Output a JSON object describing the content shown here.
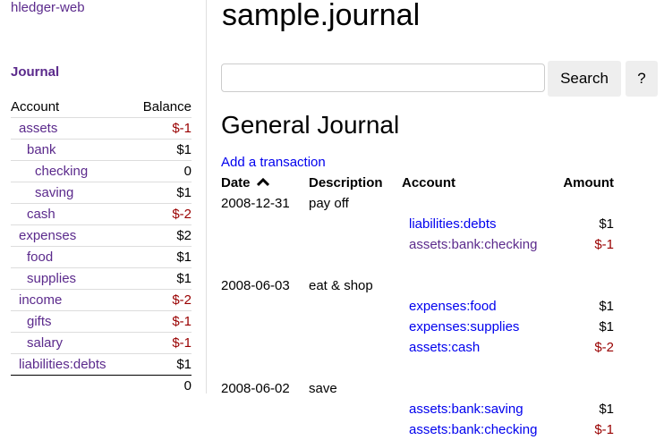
{
  "sidebar": {
    "brand": "hledger-web",
    "journal_link": "Journal",
    "headers": {
      "account": "Account",
      "balance": "Balance"
    },
    "accounts": [
      {
        "name": "assets",
        "balance": "$-1",
        "depth": 1,
        "negative": true
      },
      {
        "name": "bank",
        "balance": "$1",
        "depth": 2,
        "negative": false
      },
      {
        "name": "checking",
        "balance": "0",
        "depth": 3,
        "negative": false
      },
      {
        "name": "saving",
        "balance": "$1",
        "depth": 3,
        "negative": false
      },
      {
        "name": "cash",
        "balance": "$-2",
        "depth": 2,
        "negative": true
      },
      {
        "name": "expenses",
        "balance": "$2",
        "depth": 1,
        "negative": false
      },
      {
        "name": "food",
        "balance": "$1",
        "depth": 2,
        "negative": false
      },
      {
        "name": "supplies",
        "balance": "$1",
        "depth": 2,
        "negative": false
      },
      {
        "name": "income",
        "balance": "$-2",
        "depth": 1,
        "negative": true
      },
      {
        "name": "gifts",
        "balance": "$-1",
        "depth": 2,
        "negative": true
      },
      {
        "name": "salary",
        "balance": "$-1",
        "depth": 2,
        "negative": true
      },
      {
        "name": "liabilities:debts",
        "balance": "$1",
        "depth": 1,
        "negative": false
      }
    ],
    "total": "0"
  },
  "main": {
    "title": "sample.journal",
    "search": {
      "value": "",
      "button": "Search",
      "help": "?"
    },
    "heading": "General Journal",
    "add_link": "Add a transaction",
    "columns": {
      "date": "Date",
      "description": "Description",
      "account": "Account",
      "amount": "Amount"
    },
    "sort_icon": "chevron-up-icon",
    "transactions": [
      {
        "date": "2008-12-31",
        "description": "pay off",
        "postings": [
          {
            "account": "liabilities:debts",
            "amount": "$1",
            "visited": false,
            "negative": false
          },
          {
            "account": "assets:bank:checking",
            "amount": "$-1",
            "visited": true,
            "negative": true
          }
        ]
      },
      {
        "date": "2008-06-03",
        "description": "eat & shop",
        "postings": [
          {
            "account": "expenses:food",
            "amount": "$1",
            "visited": false,
            "negative": false
          },
          {
            "account": "expenses:supplies",
            "amount": "$1",
            "visited": false,
            "negative": false
          },
          {
            "account": "assets:cash",
            "amount": "$-2",
            "visited": false,
            "negative": true
          }
        ]
      },
      {
        "date": "2008-06-02",
        "description": "save",
        "postings": [
          {
            "account": "assets:bank:saving",
            "amount": "$1",
            "visited": false,
            "negative": false
          },
          {
            "account": "assets:bank:checking",
            "amount": "$-1",
            "visited": false,
            "negative": true
          }
        ]
      }
    ]
  },
  "colors": {
    "visited_link": "#5b2a8c",
    "link": "#0000ee",
    "negative": "#990000"
  }
}
